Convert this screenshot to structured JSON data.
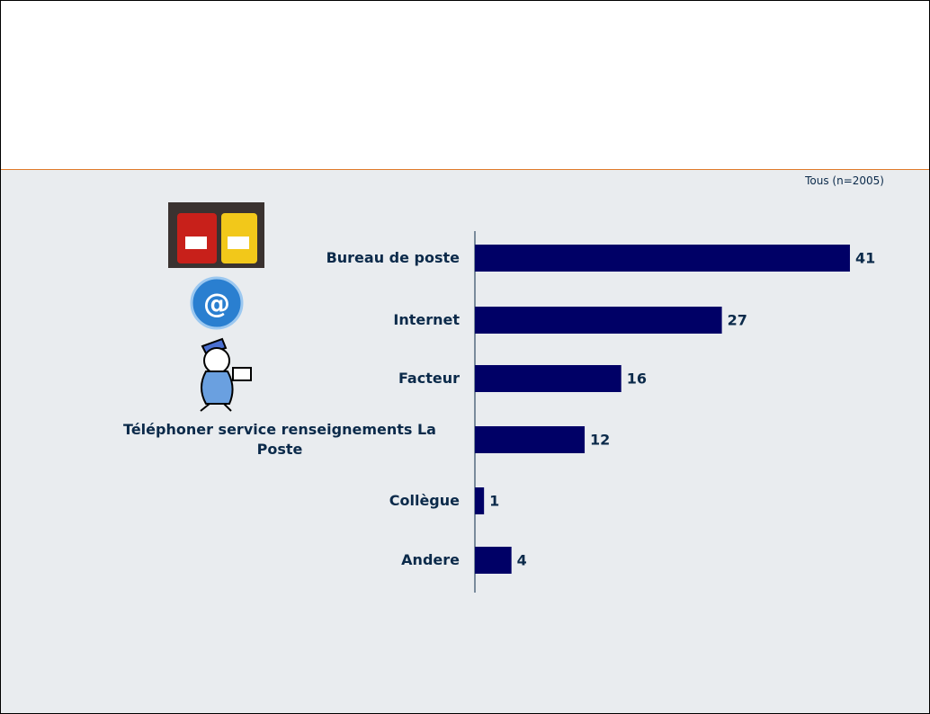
{
  "chart_data": {
    "type": "bar",
    "note": "Tous (n=2005)",
    "categories": [
      "Bureau de poste",
      "Internet",
      "Facteur",
      "Téléphoner service renseignements La Poste",
      "Collègue",
      "Andere"
    ],
    "values": [
      41,
      27,
      16,
      12,
      1,
      4
    ],
    "color": "#000066"
  }
}
